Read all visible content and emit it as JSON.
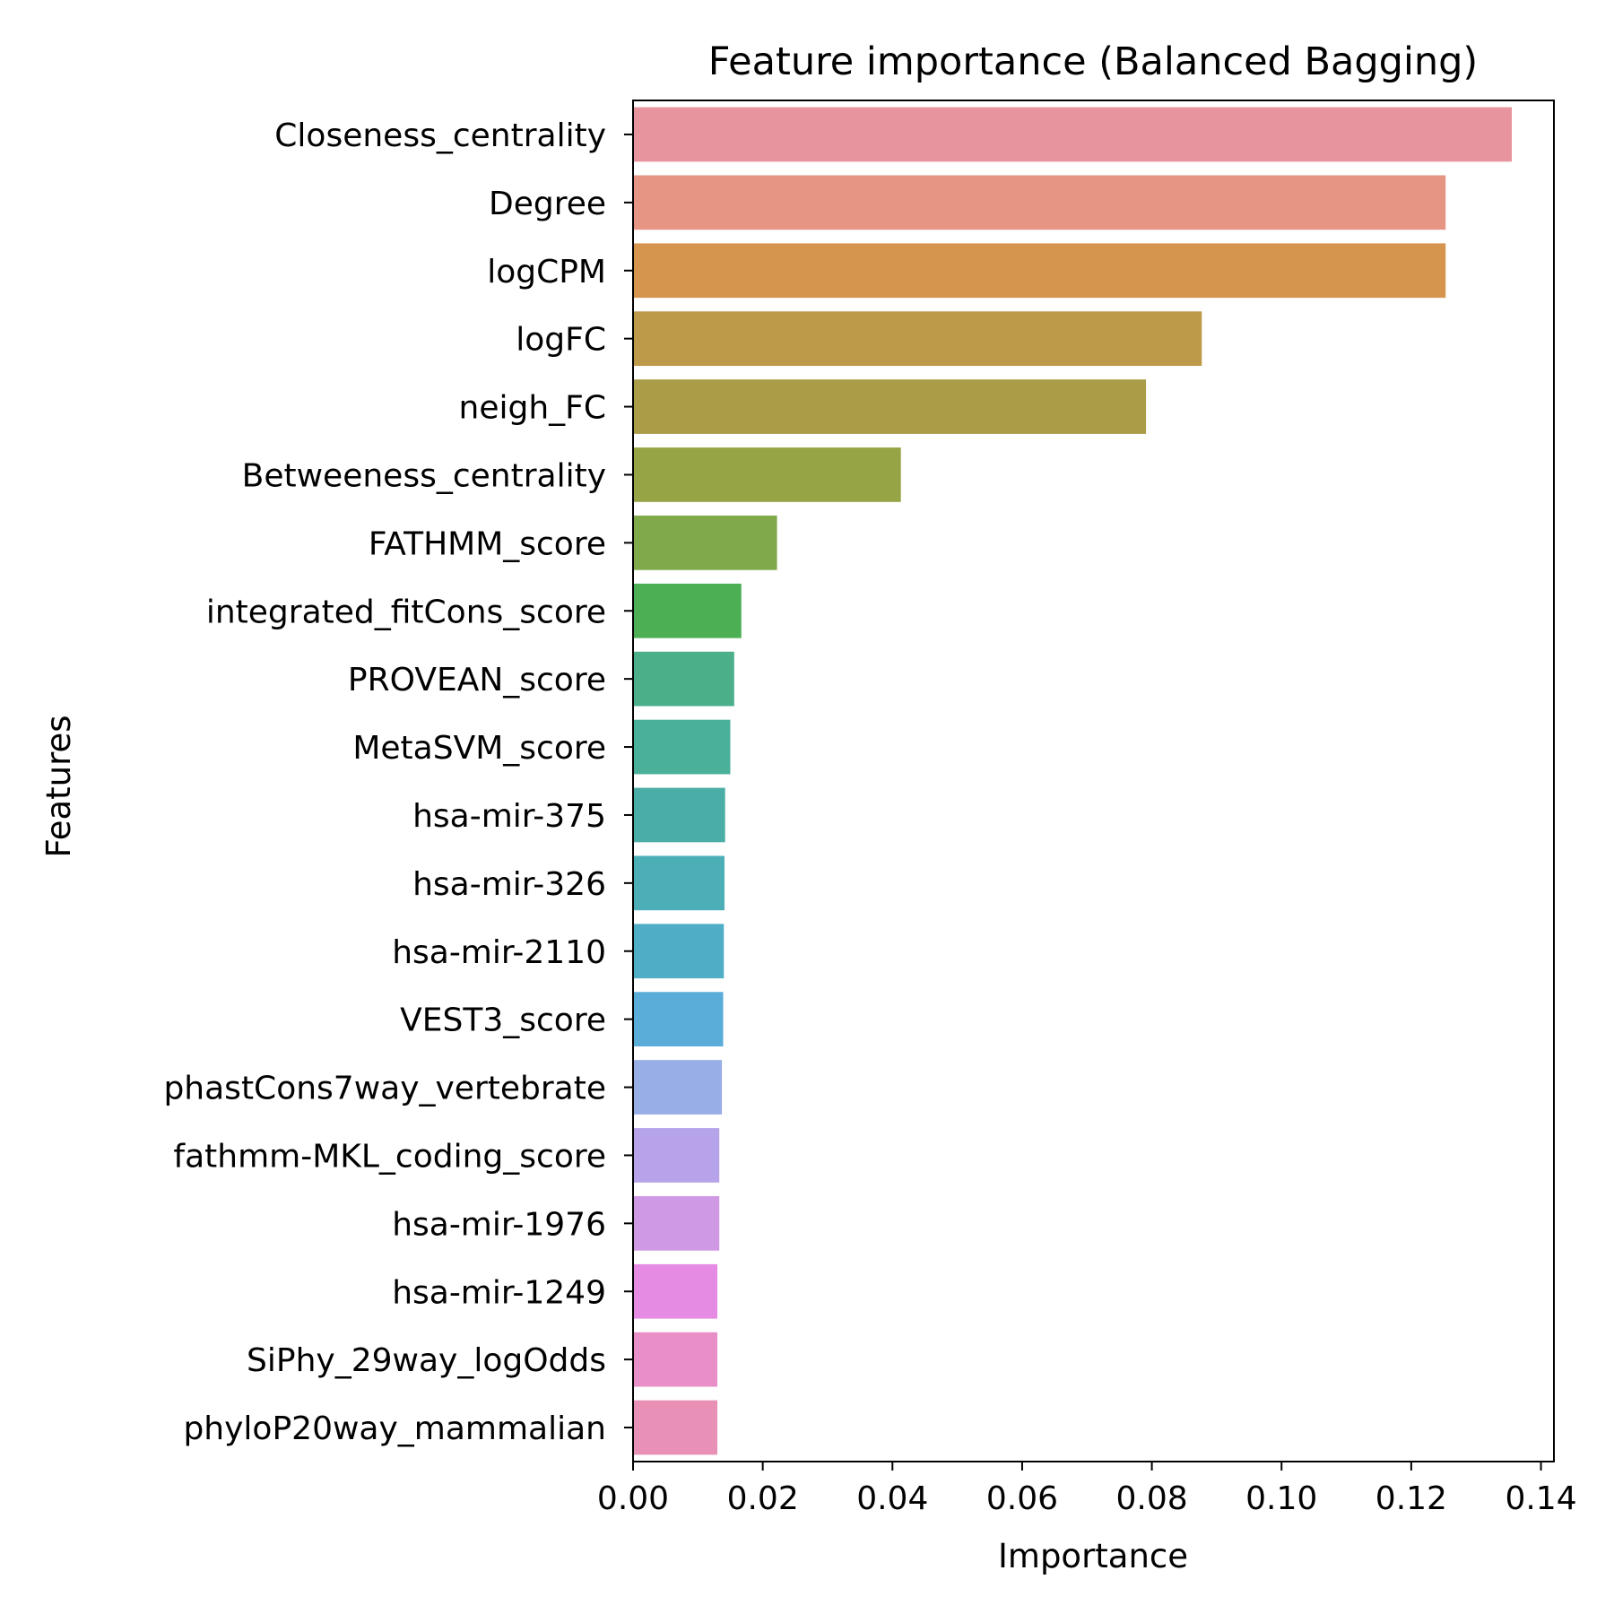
{
  "chart_data": {
    "type": "bar",
    "orientation": "horizontal",
    "title": "Feature importance (Balanced Bagging)",
    "xlabel": "Importance",
    "ylabel": "Features",
    "xlim": [
      0,
      0.142
    ],
    "xticks": [
      "0.00",
      "0.02",
      "0.04",
      "0.06",
      "0.08",
      "0.10",
      "0.12",
      "0.14"
    ],
    "xtick_values": [
      0,
      0.02,
      0.04,
      0.06,
      0.08,
      0.1,
      0.12,
      0.14
    ],
    "grid": false,
    "legend": "none",
    "categories": [
      "Closeness_centrality",
      "Degree",
      "logCPM",
      "logFC",
      "neigh_FC",
      "Betweeness_centrality",
      "FATHMM_score",
      "integrated_fitCons_score",
      "PROVEAN_score",
      "MetaSVM_score",
      "hsa-mir-375",
      "hsa-mir-326",
      "hsa-mir-2110",
      "VEST3_score",
      "phastCons7way_vertebrate",
      "fathmm-MKL_coding_score",
      "hsa-mir-1976",
      "hsa-mir-1249",
      "SiPhy_29way_logOdds",
      "phyloP20way_mammalian"
    ],
    "values": [
      0.1355,
      0.1253,
      0.1253,
      0.0877,
      0.0791,
      0.0413,
      0.0222,
      0.0167,
      0.0156,
      0.015,
      0.0142,
      0.0141,
      0.014,
      0.0139,
      0.0137,
      0.0133,
      0.0133,
      0.013,
      0.013,
      0.013
    ],
    "colors": [
      "#e8949f",
      "#e69585",
      "#d5954e",
      "#bd9a4a",
      "#aa9d47",
      "#97a445",
      "#80a94a",
      "#4caf53",
      "#4bb08a",
      "#4bb09a",
      "#4baea6",
      "#4caeb6",
      "#4faec6",
      "#5badd9",
      "#97aee6",
      "#b6a3e9",
      "#d099e6",
      "#e58be4",
      "#e88fc8",
      "#e890b6"
    ]
  }
}
